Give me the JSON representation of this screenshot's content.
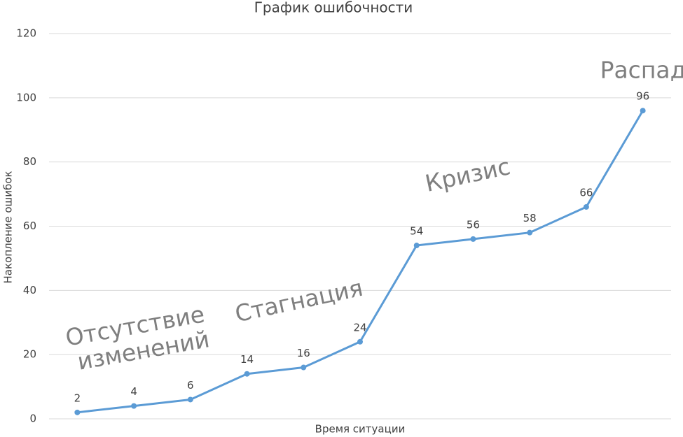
{
  "chart_data": {
    "type": "line",
    "title": "График ошибочности",
    "x_label": "Время ситуации",
    "y_label": "Накопление ошибок",
    "categories": [
      null,
      null,
      null,
      null,
      null,
      null,
      null,
      null,
      null,
      null,
      null
    ],
    "series": [
      {
        "name": null,
        "color": "#5b9bd5",
        "values": [
          2,
          4,
          6,
          14,
          16,
          24,
          54,
          56,
          58,
          66,
          96
        ]
      }
    ],
    "ylim": [
      0,
      120
    ],
    "yticks": [
      0,
      20,
      40,
      60,
      80,
      100,
      120
    ],
    "grid": true,
    "annotations": [
      "Отсутствие",
      "изменений",
      "Стагнация",
      "Кризис",
      "Распад"
    ]
  }
}
